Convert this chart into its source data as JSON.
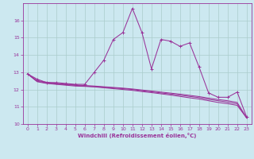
{
  "title": "",
  "xlabel": "Windchill (Refroidissement éolien,°C)",
  "background_color": "#cce8f0",
  "grid_color": "#aacccc",
  "line_color": "#993399",
  "xlim": [
    -0.5,
    23.5
  ],
  "ylim": [
    10,
    17
  ],
  "yticks": [
    10,
    11,
    12,
    13,
    14,
    15,
    16
  ],
  "xticks": [
    0,
    1,
    2,
    3,
    4,
    5,
    6,
    7,
    8,
    9,
    10,
    11,
    12,
    13,
    14,
    15,
    16,
    17,
    18,
    19,
    20,
    21,
    22,
    23
  ],
  "hours": [
    0,
    1,
    2,
    3,
    4,
    5,
    6,
    7,
    8,
    9,
    10,
    11,
    12,
    13,
    14,
    15,
    16,
    17,
    18,
    19,
    20,
    21,
    22,
    23
  ],
  "windchill": [
    12.9,
    12.6,
    12.4,
    12.4,
    12.35,
    12.3,
    12.3,
    13.0,
    13.7,
    14.9,
    15.3,
    16.7,
    15.3,
    13.2,
    14.9,
    14.8,
    14.5,
    14.7,
    13.3,
    11.8,
    11.55,
    11.55,
    11.85,
    10.4
  ],
  "line2": [
    12.9,
    12.45,
    12.35,
    12.3,
    12.25,
    12.2,
    12.18,
    12.15,
    12.1,
    12.05,
    12.0,
    11.95,
    11.88,
    11.82,
    11.75,
    11.68,
    11.6,
    11.52,
    11.45,
    11.35,
    11.25,
    11.18,
    11.08,
    10.35
  ],
  "line3": [
    12.9,
    12.48,
    12.38,
    12.32,
    12.28,
    12.24,
    12.2,
    12.17,
    12.13,
    12.09,
    12.05,
    12.0,
    11.93,
    11.87,
    11.8,
    11.74,
    11.67,
    11.6,
    11.53,
    11.43,
    11.35,
    11.27,
    11.17,
    10.35
  ],
  "line4": [
    12.9,
    12.52,
    12.42,
    12.36,
    12.31,
    12.27,
    12.23,
    12.2,
    12.16,
    12.12,
    12.08,
    12.03,
    11.97,
    11.91,
    11.85,
    11.79,
    11.73,
    11.66,
    11.59,
    11.5,
    11.42,
    11.35,
    11.25,
    10.35
  ]
}
